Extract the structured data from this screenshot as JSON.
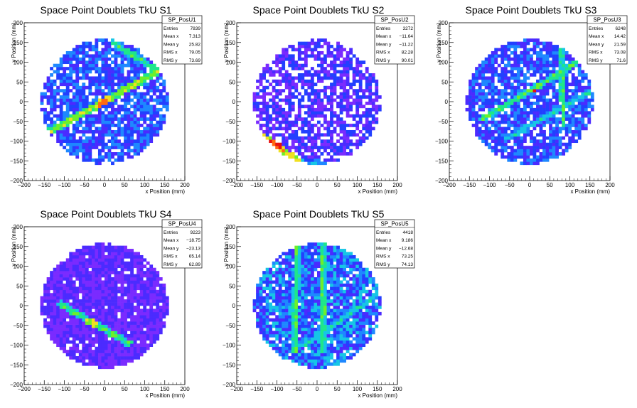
{
  "figure": {
    "pads": [
      {
        "title": "Space Point Doublets TkU S1",
        "hist": "SP_PosU1",
        "stats": [
          [
            "Entries",
            "7839"
          ],
          [
            "Mean x",
            "7.313"
          ],
          [
            "Mean y",
            "25.82"
          ],
          [
            "RMS x",
            "79.05"
          ],
          [
            "RMS y",
            "73.69"
          ]
        ]
      },
      {
        "title": "Space Point Doublets TkU S2",
        "hist": "SP_PosU2",
        "stats": [
          [
            "Entries",
            "3272"
          ],
          [
            "Mean x",
            "−11.64"
          ],
          [
            "Mean y",
            "−11.22"
          ],
          [
            "RMS x",
            "82.28"
          ],
          [
            "RMS y",
            "90.01"
          ]
        ]
      },
      {
        "title": "Space Point Doublets TkU S3",
        "hist": "SP_PosU3",
        "stats": [
          [
            "Entries",
            "6248"
          ],
          [
            "Mean x",
            "14.42"
          ],
          [
            "Mean y",
            "21.59"
          ],
          [
            "RMS x",
            "73.08"
          ],
          [
            "RMS y",
            "71.6"
          ]
        ]
      },
      {
        "title": "Space Point Doublets TkU S4",
        "hist": "SP_PosU4",
        "stats": [
          [
            "Entries",
            "9223"
          ],
          [
            "Mean x",
            "−18.75"
          ],
          [
            "Mean y",
            "−23.13"
          ],
          [
            "RMS x",
            "65.14"
          ],
          [
            "RMS y",
            "62.89"
          ]
        ]
      },
      {
        "title": "Space Point Doublets TkU S5",
        "hist": "SP_PosU5",
        "stats": [
          [
            "Entries",
            "4418"
          ],
          [
            "Mean x",
            "9.186"
          ],
          [
            "Mean y",
            "−12.68"
          ],
          [
            "RMS x",
            "73.25"
          ],
          [
            "RMS y",
            "74.13"
          ]
        ]
      }
    ]
  },
  "chart_data": [
    {
      "type": "heatmap",
      "title": "Space Point Doublets TkU S1",
      "xlabel": "x Position (mm)",
      "ylabel": "y Position (mm)",
      "xlim": [
        -200,
        200
      ],
      "ylim": [
        -200,
        200
      ],
      "xticks": [
        "−200",
        "−150",
        "−100",
        "−50",
        "0",
        "50",
        "100",
        "150",
        "200"
      ],
      "yticks": [
        "−200",
        "−150",
        "−100",
        "−50",
        "0",
        "50",
        "100",
        "150",
        "200"
      ],
      "entries": 7839,
      "mean_x": 7.313,
      "mean_y": 25.82,
      "rms_x": 79.05,
      "rms_y": 73.69,
      "pattern": "disc r~160 with diagonal band from (-130,-70) to (135,75) and arm (135,75) to (20,150)"
    },
    {
      "type": "heatmap",
      "title": "Space Point Doublets TkU S2",
      "xlabel": "x Position (mm)",
      "ylabel": "y Position (mm)",
      "xlim": [
        -200,
        200
      ],
      "ylim": [
        -200,
        200
      ],
      "xticks": [
        "−200",
        "−150",
        "−100",
        "−50",
        "0",
        "50",
        "100",
        "150",
        "200"
      ],
      "yticks": [
        "−200",
        "−150",
        "−100",
        "−50",
        "0",
        "50",
        "100",
        "150",
        "200"
      ],
      "entries": 3272,
      "mean_x": -11.64,
      "mean_y": -11.22,
      "rms_x": 82.28,
      "rms_y": 90.01,
      "pattern": "sparse disc r~160 with hot band lower-left from (-140,-85) to (-60,-145)"
    },
    {
      "type": "heatmap",
      "title": "Space Point Doublets TkU S3",
      "xlabel": "x Position (mm)",
      "ylabel": "y Position (mm)",
      "xlim": [
        -200,
        200
      ],
      "ylim": [
        -200,
        200
      ],
      "xticks": [
        "−200",
        "−150",
        "−100",
        "−50",
        "0",
        "50",
        "100",
        "150",
        "200"
      ],
      "yticks": [
        "−200",
        "−150",
        "−100",
        "−50",
        "0",
        "50",
        "100",
        "150",
        "200"
      ],
      "entries": 6248,
      "mean_x": 14.42,
      "mean_y": 21.59,
      "rms_x": 73.08,
      "rms_y": 71.6,
      "pattern": "disc r~160 with vertical band x~80, diagonal bands through (0,10)"
    },
    {
      "type": "heatmap",
      "title": "Space Point Doublets TkU S4",
      "xlabel": "x Position (mm)",
      "ylabel": "y Position (mm)",
      "xlim": [
        -200,
        200
      ],
      "ylim": [
        -200,
        200
      ],
      "xticks": [
        "−200",
        "−150",
        "−100",
        "−50",
        "0",
        "50",
        "100",
        "150",
        "200"
      ],
      "yticks": [
        "−200",
        "−150",
        "−100",
        "−50",
        "0",
        "50",
        "100",
        "150",
        "200"
      ],
      "entries": 9223,
      "mean_x": -18.75,
      "mean_y": -23.13,
      "rms_x": 65.14,
      "rms_y": 62.89,
      "pattern": "dense purple disc r~160 with band from (-100,-5) to (60,-90)"
    },
    {
      "type": "heatmap",
      "title": "Space Point Doublets TkU S5",
      "xlabel": "x Position (mm)",
      "ylabel": "y Position (mm)",
      "xlim": [
        -200,
        200
      ],
      "ylim": [
        -200,
        200
      ],
      "xticks": [
        "−200",
        "−150",
        "−100",
        "−50",
        "0",
        "50",
        "100",
        "150",
        "200"
      ],
      "yticks": [
        "−200",
        "−150",
        "−100",
        "−50",
        "0",
        "50",
        "100",
        "150",
        "200"
      ],
      "entries": 4418,
      "mean_x": 9.186,
      "mean_y": -12.68,
      "rms_x": 73.25,
      "rms_y": 74.13,
      "pattern": "mixed disc r~160 with vertical bands x~-55 and x~15, diagonal to (160,30)"
    }
  ],
  "colors": {
    "background": "#ffffff",
    "palette": [
      "#7a2bff",
      "#4b2bff",
      "#2240ff",
      "#1e88ff",
      "#16c6e6",
      "#1ee68a",
      "#6df02a",
      "#f0e020",
      "#ff6a10",
      "#e81010"
    ]
  }
}
